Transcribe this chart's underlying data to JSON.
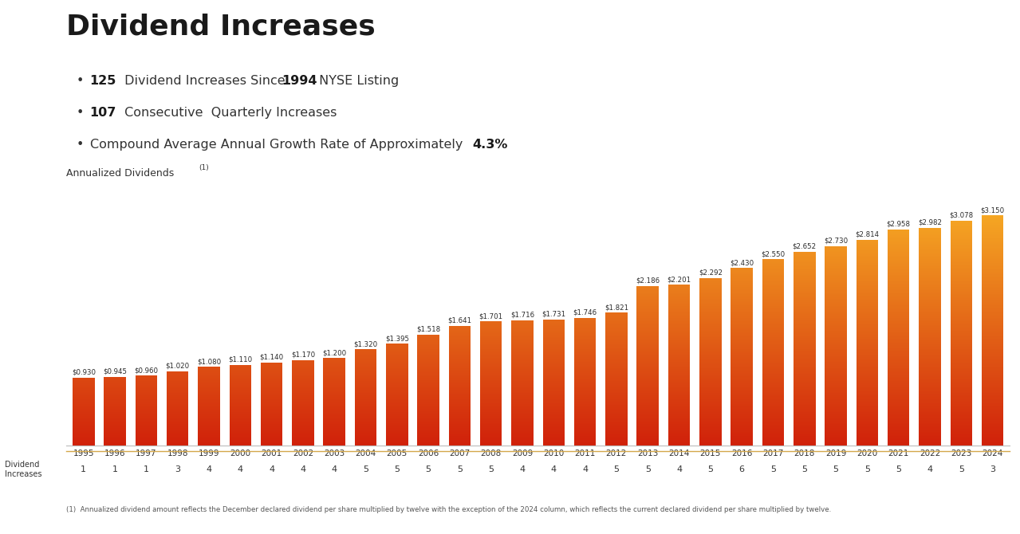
{
  "title": "Dividend Increases",
  "bullet1_bold": "125",
  "bullet1_rest": " Dividend Increases Since ",
  "bullet1_bold2": "1994",
  "bullet1_rest2": " NYSE Listing",
  "bullet2_bold": "107",
  "bullet2_rest": " Consecutive  Quarterly Increases",
  "bullet3_rest": "Compound Average Annual Growth Rate of Approximately ",
  "bullet3_bold": "4.3%",
  "footnote": "(1) Annualized dividend amount reflects the December declared dividend per share multiplied by twelve with the exception of the 2024 column, which reflects the current declared dividend per share multiplied by twelve.",
  "years": [
    1995,
    1996,
    1997,
    1998,
    1999,
    2000,
    2001,
    2002,
    2003,
    2004,
    2005,
    2006,
    2007,
    2008,
    2009,
    2010,
    2011,
    2012,
    2013,
    2014,
    2015,
    2016,
    2017,
    2018,
    2019,
    2020,
    2021,
    2022,
    2023,
    2024
  ],
  "values": [
    0.93,
    0.945,
    0.96,
    1.02,
    1.08,
    1.11,
    1.14,
    1.17,
    1.2,
    1.32,
    1.395,
    1.518,
    1.641,
    1.701,
    1.716,
    1.731,
    1.746,
    1.821,
    2.186,
    2.201,
    2.292,
    2.43,
    2.55,
    2.652,
    2.73,
    2.814,
    2.958,
    2.982,
    3.078,
    3.15
  ],
  "div_increases": [
    1,
    1,
    1,
    3,
    4,
    4,
    4,
    4,
    4,
    5,
    5,
    5,
    5,
    5,
    4,
    4,
    4,
    5,
    5,
    4,
    5,
    6,
    5,
    5,
    5,
    5,
    5,
    4,
    5,
    3
  ],
  "bar_color_top": "#F5A623",
  "bar_color_bottom": "#D0200A",
  "background_color": "#FFFFFF",
  "value_fontsize": 6.2,
  "axis_fontsize": 7.5,
  "title_fontsize": 26,
  "bullet_fontsize": 11.5,
  "annualized_fontsize": 9,
  "ylim_max": 3.65,
  "bar_width": 0.7
}
